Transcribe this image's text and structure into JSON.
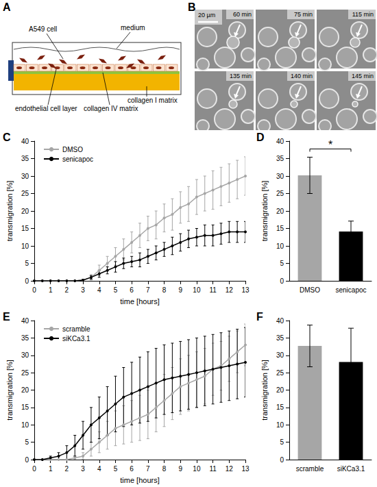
{
  "panel_labels": [
    "A",
    "B",
    "C",
    "D",
    "E",
    "F"
  ],
  "diagram": {
    "labels": {
      "a549": "A549 cell",
      "medium": "medium",
      "endothelial": "endothelial cell layer",
      "collagen_iv": "collagen IV matrix",
      "collagen_i": "collagen I matrix"
    }
  },
  "images": {
    "scale_bar": "20 µm",
    "frames": [
      "60 min",
      "75 min",
      "115 min",
      "135 min",
      "140 min",
      "145 min"
    ]
  },
  "chart_data": [
    {
      "type": "line",
      "x_label": "time [hours]",
      "y_label": "transmigration [%]",
      "x": [
        0,
        0.5,
        1,
        1.5,
        2,
        2.5,
        3,
        3.5,
        4,
        4.5,
        5,
        5.5,
        6,
        6.5,
        7,
        7.5,
        8,
        8.5,
        9,
        9.5,
        10,
        10.5,
        11,
        11.5,
        12,
        12.5,
        13
      ],
      "series": [
        {
          "name": "DMSO",
          "color": "#a6a6a6",
          "values": [
            0,
            0,
            0,
            0,
            0,
            0,
            0.2,
            1,
            3,
            5,
            7,
            9,
            11,
            13,
            15,
            16,
            18,
            19,
            21,
            22,
            24,
            25,
            26,
            27,
            28,
            29,
            30
          ],
          "errors": [
            0,
            0,
            0,
            0,
            0,
            0,
            0.2,
            0.8,
            1.5,
            2,
            2.5,
            3,
            3,
            3.5,
            3.5,
            4,
            4,
            4.5,
            4.5,
            5,
            5,
            5,
            5.5,
            5.5,
            5.5,
            5.5,
            5.5
          ]
        },
        {
          "name": "senicapoc",
          "color": "#000000",
          "values": [
            0,
            0,
            0,
            0,
            0,
            0,
            0.2,
            1,
            2,
            3,
            4,
            5,
            5.5,
            6,
            7,
            8,
            9,
            10,
            11,
            12,
            12.5,
            13,
            13,
            13.5,
            14,
            14,
            14
          ],
          "errors": [
            0,
            0,
            0,
            0,
            0,
            0,
            0.2,
            0.5,
            1,
            1,
            1.5,
            1.5,
            1.5,
            2,
            2,
            2,
            2,
            2.5,
            2.5,
            2.5,
            2.5,
            3,
            3,
            3,
            3,
            3,
            3
          ]
        }
      ],
      "xlim": [
        0,
        13
      ],
      "xticks": [
        0,
        1,
        2,
        3,
        4,
        5,
        6,
        7,
        8,
        9,
        10,
        11,
        12,
        13
      ],
      "ylim": [
        0,
        40
      ],
      "yticks": [
        0,
        5,
        10,
        15,
        20,
        25,
        30,
        35,
        40
      ],
      "legend": "top-left",
      "marker": "circle",
      "grid": false
    },
    {
      "type": "bar",
      "y_label": "transmigration [%]",
      "categories": [
        "DMSO",
        "senicapoc"
      ],
      "values": [
        30.2,
        14.1
      ],
      "errors": [
        5.2,
        3.0
      ],
      "colors": [
        "#a6a6a6",
        "#000000"
      ],
      "ylim": [
        0,
        40
      ],
      "yticks": [
        0,
        5,
        10,
        15,
        20,
        25,
        30,
        35,
        40
      ],
      "annotations": [
        "*"
      ],
      "grid": false
    },
    {
      "type": "line",
      "x_label": "time [hours]",
      "y_label": "transmigration [%]",
      "x": [
        0,
        0.5,
        1,
        1.5,
        2,
        2.5,
        3,
        3.5,
        4,
        4.5,
        5,
        5.5,
        6,
        6.5,
        7,
        7.5,
        8,
        8.5,
        9,
        9.5,
        10,
        10.5,
        11,
        11.5,
        12,
        12.5,
        13
      ],
      "series": [
        {
          "name": "scramble",
          "color": "#a6a6a6",
          "values": [
            0,
            0,
            0,
            0,
            0,
            0.5,
            1,
            3,
            5,
            7,
            9,
            10,
            11,
            12,
            13,
            15,
            17,
            19,
            21,
            22,
            23,
            24,
            26,
            27,
            29,
            31,
            33
          ],
          "errors": [
            0,
            0,
            0,
            0,
            0,
            0.5,
            1,
            2,
            3,
            4,
            5,
            5.5,
            6,
            6.5,
            7,
            7,
            7.5,
            7.5,
            8,
            8,
            8,
            8,
            7.5,
            7,
            6.5,
            6,
            6
          ]
        },
        {
          "name": "siKCa3.1",
          "color": "#000000",
          "values": [
            0,
            0,
            0.5,
            1,
            2,
            4,
            7,
            10,
            12,
            14,
            16,
            18,
            19,
            20,
            21,
            22,
            23,
            23.5,
            24,
            24.5,
            25,
            25.5,
            26,
            26.5,
            27,
            27.5,
            28
          ],
          "errors": [
            0,
            0,
            0.5,
            1,
            2,
            3,
            4,
            5,
            6,
            7,
            8,
            8.5,
            9,
            9.5,
            10,
            10,
            10,
            10,
            10,
            10,
            10,
            10,
            10,
            10,
            10,
            10,
            10
          ]
        }
      ],
      "xlim": [
        0,
        13
      ],
      "xticks": [
        0,
        1,
        2,
        3,
        4,
        5,
        6,
        7,
        8,
        9,
        10,
        11,
        12,
        13
      ],
      "ylim": [
        0,
        40
      ],
      "yticks": [
        0,
        5,
        10,
        15,
        20,
        25,
        30,
        35,
        40
      ],
      "legend": "top-left",
      "marker": "circle",
      "grid": false
    },
    {
      "type": "bar",
      "y_label": "transmigration [%]",
      "categories": [
        "scramble",
        "siKCa3.1"
      ],
      "values": [
        32.7,
        28.1
      ],
      "errors": [
        6.0,
        9.7
      ],
      "colors": [
        "#a6a6a6",
        "#000000"
      ],
      "ylim": [
        0,
        40
      ],
      "yticks": [
        0,
        5,
        10,
        15,
        20,
        25,
        30,
        35,
        40
      ],
      "grid": false
    }
  ]
}
